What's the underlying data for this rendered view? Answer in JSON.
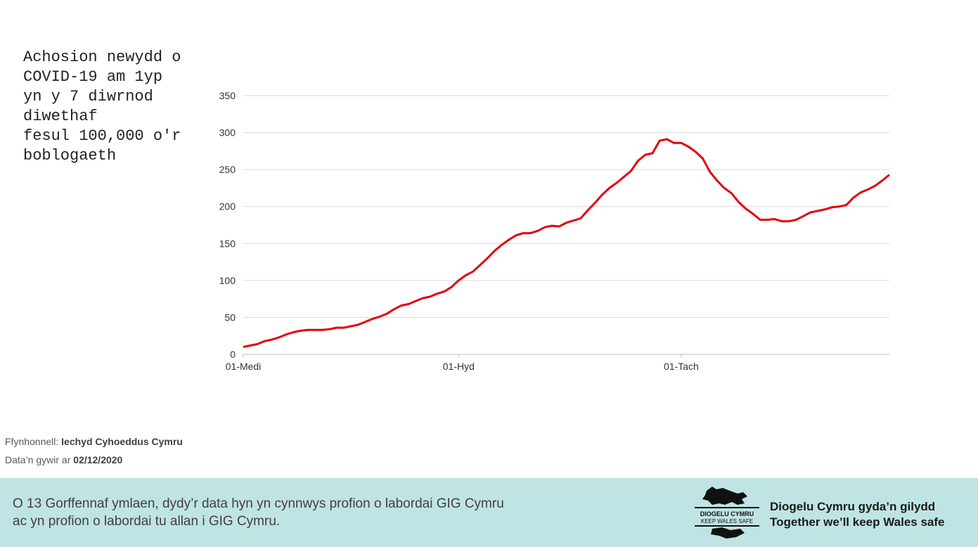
{
  "title": "Achosion newydd o\nCOVID-19 am 1yp\nyn y 7 diwrnod\ndiwethaf\nfesul 100,000 o'r\nboblogaeth",
  "source": {
    "label": "Ffynhonnell:",
    "value": "Iechyd Cyhoeddus Cymru",
    "date_label": "Data’n gywir ar",
    "date_value": "02/12/2020"
  },
  "footer": {
    "note_line1": "O 13 Gorffennaf ymlaen, dydy’r data hyn yn cynnwys profion o labordai GIG Cymru",
    "note_line2": "ac yn profion o labordai tu allan i GIG Cymru.",
    "logo_text_line1": "DIOGELU CYMRU",
    "logo_text_line2": "KEEP WALES SAFE",
    "tagline_welsh": "Diogelu Cymru gyda’n gilydd",
    "tagline_english": "Together we’ll keep Wales safe",
    "background_color": "#c0e4e3"
  },
  "chart_data": {
    "type": "line",
    "x_start": "2020-09-01",
    "x_end": "2020-11-30",
    "x_ticks": [
      {
        "label": "01-Medi",
        "date": "2020-09-01"
      },
      {
        "label": "01-Hyd",
        "date": "2020-10-01"
      },
      {
        "label": "01-Tach",
        "date": "2020-11-01"
      }
    ],
    "y_ticks": [
      0,
      50,
      100,
      150,
      200,
      250,
      300,
      350
    ],
    "ylim": [
      0,
      350
    ],
    "grid": true,
    "line_color": "#e3000f",
    "series": [
      {
        "values": [
          10,
          12,
          14,
          18,
          20,
          23,
          27,
          30,
          32,
          33,
          33,
          33,
          34,
          36,
          36,
          38,
          40,
          44,
          48,
          51,
          55,
          61,
          66,
          68,
          72,
          76,
          78,
          82,
          85,
          91,
          100,
          107,
          112,
          121,
          130,
          140,
          148,
          155,
          161,
          164,
          164,
          167,
          172,
          174,
          173,
          178,
          181,
          184,
          195,
          205,
          216,
          225,
          232,
          240,
          248,
          262,
          270,
          272,
          289,
          291,
          286,
          286,
          281,
          274,
          265,
          247,
          235,
          225,
          218,
          206,
          197,
          190,
          182,
          182,
          183,
          180,
          180,
          182,
          187,
          192,
          194,
          196,
          199,
          200,
          202,
          212,
          219,
          223,
          228,
          235,
          243
        ]
      }
    ]
  }
}
